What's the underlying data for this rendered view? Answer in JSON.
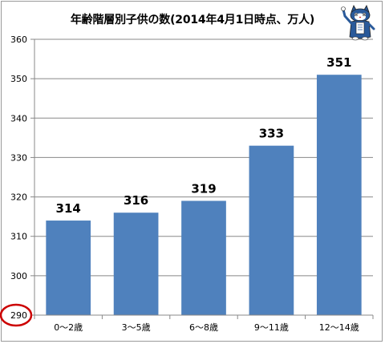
{
  "chart_data": {
    "type": "bar",
    "title": "年齢階層別子供の数(2014年4月1日時点、万人)",
    "categories": [
      "0～2歳",
      "3～5歳",
      "6～8歳",
      "9～11歳",
      "12～14歳"
    ],
    "values": [
      314,
      316,
      319,
      333,
      351
    ],
    "ylim": [
      290,
      360
    ],
    "yticks": [
      290,
      300,
      310,
      320,
      330,
      340,
      350,
      360
    ],
    "xlabel": "",
    "ylabel": "",
    "grid": true,
    "legend": "none",
    "bar_color": "#4f81bd",
    "highlight_tick": 290,
    "highlight_color": "#cc0000"
  },
  "colors": {
    "grid": "#888888",
    "axis": "#888888",
    "label": "#000000"
  },
  "icons": {
    "mascot": "cat-mascot-icon"
  }
}
